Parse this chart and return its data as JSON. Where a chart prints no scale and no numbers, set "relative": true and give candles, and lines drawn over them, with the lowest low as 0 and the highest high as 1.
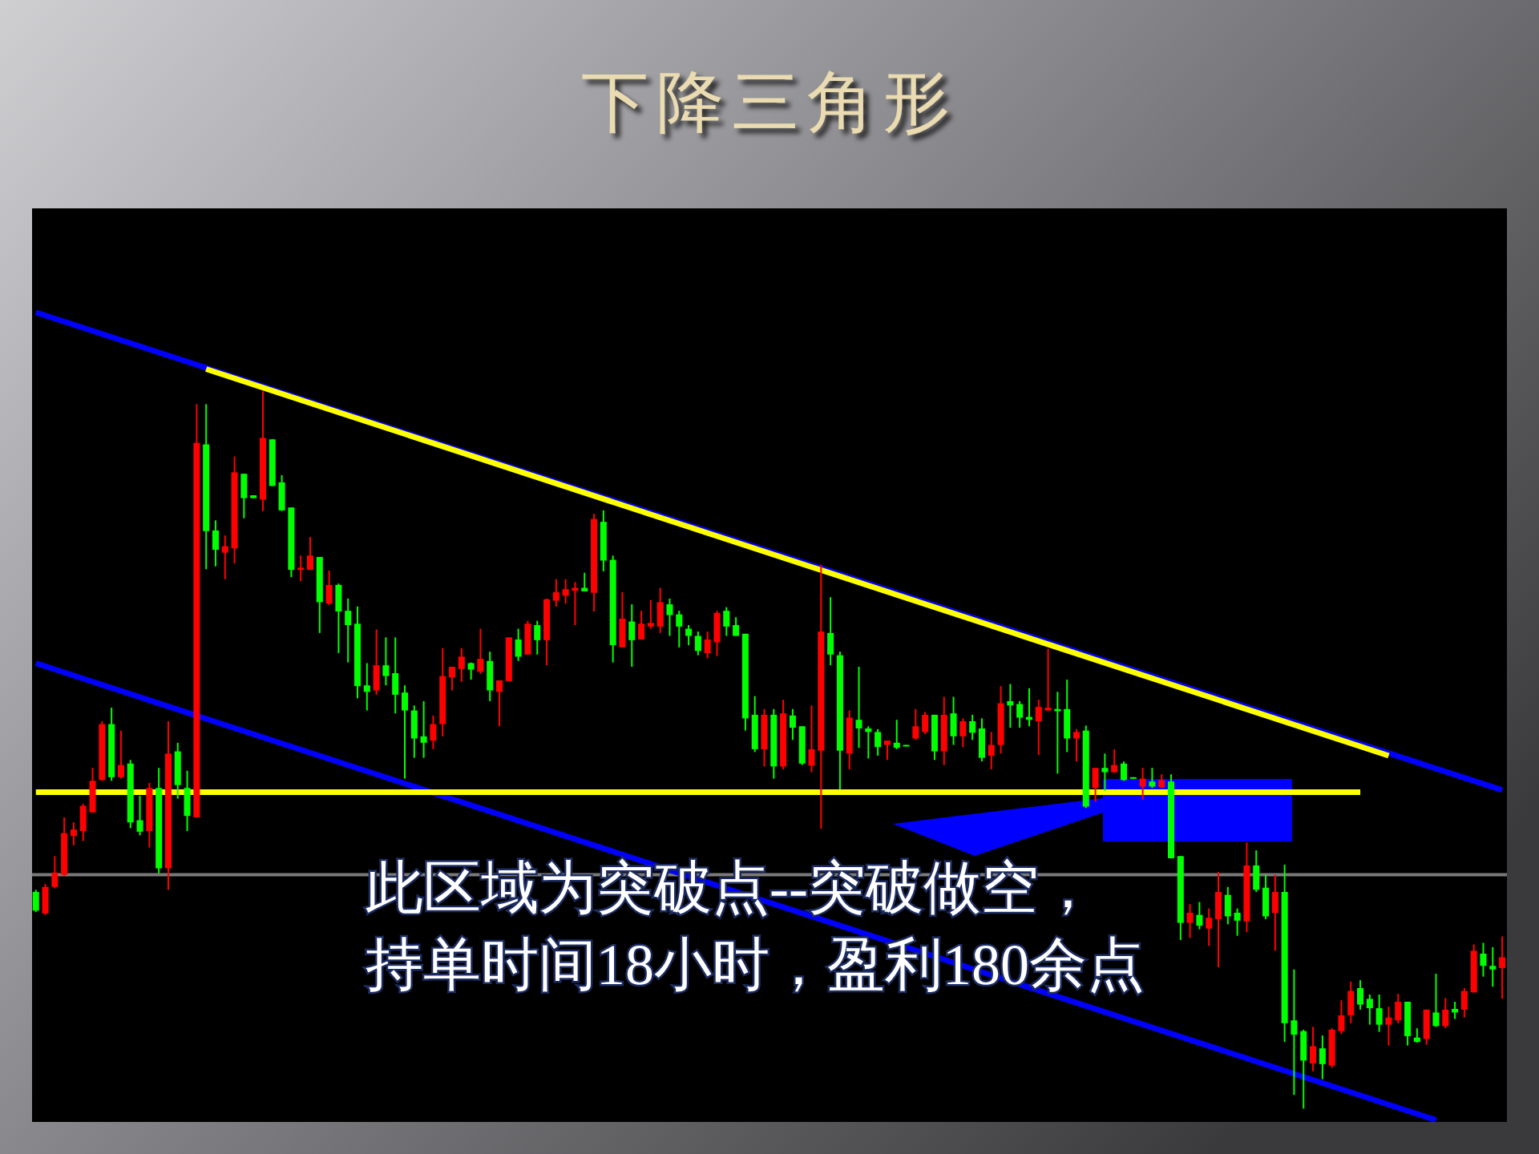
{
  "chart_data": {
    "type": "candlestick",
    "title": "下降三角形",
    "relative": true,
    "categories": [
      null,
      null,
      null,
      null,
      null,
      null,
      null,
      null,
      null,
      null,
      null,
      null,
      null,
      null,
      null,
      null,
      null,
      null,
      null,
      null,
      null,
      null,
      null,
      null,
      null,
      null,
      null,
      null,
      null,
      null,
      null,
      null,
      null,
      null,
      null,
      null,
      null,
      null,
      null,
      null,
      null,
      null,
      null,
      null,
      null,
      null,
      null,
      null,
      null,
      null,
      null,
      null,
      null,
      null,
      null,
      null,
      null,
      null,
      null,
      null,
      null,
      null,
      null,
      null,
      null,
      null,
      null,
      null,
      null,
      null,
      null,
      null,
      null,
      null,
      null,
      null,
      null,
      null,
      null,
      null,
      null,
      null,
      null,
      null,
      null,
      null,
      null,
      null,
      null,
      null,
      null,
      null,
      null,
      null,
      null,
      null,
      null,
      null,
      null,
      null,
      null,
      null,
      null,
      null,
      null,
      null,
      null,
      null,
      null,
      null,
      null,
      null,
      null,
      null,
      null,
      null,
      null,
      null,
      null,
      null,
      null,
      null,
      null,
      null,
      null,
      null,
      null,
      null,
      null,
      null,
      null,
      null,
      null,
      null,
      null,
      null,
      null,
      null,
      null,
      null,
      null,
      null,
      null,
      null,
      null,
      null,
      null,
      null,
      null,
      null,
      null,
      null,
      null,
      null,
      null,
      null
    ],
    "ohlc": [
      [
        0.302,
        0.305,
        0.274,
        0.276
      ],
      [
        0.272,
        0.313,
        0.27,
        0.309
      ],
      [
        0.309,
        0.352,
        0.307,
        0.329
      ],
      [
        0.326,
        0.406,
        0.324,
        0.384
      ],
      [
        0.38,
        0.399,
        0.367,
        0.389
      ],
      [
        0.387,
        0.425,
        0.373,
        0.422
      ],
      [
        0.413,
        0.475,
        0.413,
        0.457
      ],
      [
        0.458,
        0.54,
        0.457,
        0.536
      ],
      [
        0.536,
        0.559,
        0.457,
        0.462
      ],
      [
        0.462,
        0.527,
        0.46,
        0.479
      ],
      [
        0.481,
        0.486,
        0.391,
        0.399
      ],
      [
        0.402,
        0.436,
        0.381,
        0.386
      ],
      [
        0.387,
        0.454,
        0.364,
        0.447
      ],
      [
        0.447,
        0.475,
        0.328,
        0.335
      ],
      [
        0.335,
        0.54,
        0.305,
        0.495
      ],
      [
        0.498,
        0.51,
        0.432,
        0.451
      ],
      [
        0.447,
        0.471,
        0.387,
        0.408
      ],
      [
        0.406,
        0.982,
        0.406,
        0.928
      ],
      [
        0.926,
        0.982,
        0.752,
        0.805
      ],
      [
        0.806,
        0.82,
        0.756,
        0.779
      ],
      [
        0.775,
        0.799,
        0.738,
        0.784
      ],
      [
        0.781,
        0.909,
        0.76,
        0.887
      ],
      [
        0.885,
        0.885,
        0.823,
        0.851
      ],
      [
        0.855,
        0.855,
        0.851,
        0.851
      ],
      [
        0.849,
        1.0,
        0.833,
        0.935
      ],
      [
        0.933,
        0.933,
        0.868,
        0.868
      ],
      [
        0.873,
        0.883,
        0.833,
        0.834
      ],
      [
        0.838,
        0.838,
        0.741,
        0.751
      ],
      [
        0.751,
        0.771,
        0.735,
        0.754
      ],
      [
        0.751,
        0.797,
        0.751,
        0.771
      ],
      [
        0.769,
        0.769,
        0.663,
        0.706
      ],
      [
        0.704,
        0.75,
        0.702,
        0.73
      ],
      [
        0.73,
        0.732,
        0.635,
        0.693
      ],
      [
        0.694,
        0.711,
        0.622,
        0.674
      ],
      [
        0.676,
        0.7,
        0.572,
        0.589
      ],
      [
        0.59,
        0.621,
        0.555,
        0.581
      ],
      [
        0.583,
        0.668,
        0.577,
        0.618
      ],
      [
        0.618,
        0.657,
        0.59,
        0.603
      ],
      [
        0.607,
        0.657,
        0.551,
        0.577
      ],
      [
        0.58,
        0.59,
        0.46,
        0.555
      ],
      [
        0.555,
        0.562,
        0.489,
        0.516
      ],
      [
        0.519,
        0.568,
        0.489,
        0.51
      ],
      [
        0.513,
        0.548,
        0.501,
        0.536
      ],
      [
        0.536,
        0.642,
        0.519,
        0.603
      ],
      [
        0.601,
        0.616,
        0.583,
        0.616
      ],
      [
        0.613,
        0.642,
        0.595,
        0.63
      ],
      [
        0.621,
        0.622,
        0.598,
        0.612
      ],
      [
        0.609,
        0.669,
        0.606,
        0.627
      ],
      [
        0.624,
        0.637,
        0.568,
        0.583
      ],
      [
        0.581,
        0.597,
        0.533,
        0.597
      ],
      [
        0.596,
        0.657,
        0.596,
        0.657
      ],
      [
        0.654,
        0.669,
        0.624,
        0.63
      ],
      [
        0.633,
        0.68,
        0.633,
        0.676
      ],
      [
        0.674,
        0.68,
        0.633,
        0.653
      ],
      [
        0.653,
        0.711,
        0.618,
        0.71
      ],
      [
        0.708,
        0.738,
        0.7,
        0.72
      ],
      [
        0.715,
        0.738,
        0.704,
        0.724
      ],
      [
        0.722,
        0.734,
        0.674,
        0.726
      ],
      [
        0.726,
        0.747,
        0.721,
        0.721
      ],
      [
        0.719,
        0.829,
        0.693,
        0.822
      ],
      [
        0.818,
        0.834,
        0.749,
        0.764
      ],
      [
        0.765,
        0.771,
        0.622,
        0.646
      ],
      [
        0.643,
        0.72,
        0.643,
        0.683
      ],
      [
        0.679,
        0.703,
        0.616,
        0.653
      ],
      [
        0.654,
        0.694,
        0.654,
        0.676
      ],
      [
        0.672,
        0.709,
        0.669,
        0.677
      ],
      [
        0.672,
        0.726,
        0.663,
        0.706
      ],
      [
        0.703,
        0.711,
        0.659,
        0.688
      ],
      [
        0.689,
        0.694,
        0.643,
        0.672
      ],
      [
        0.669,
        0.674,
        0.646,
        0.659
      ],
      [
        0.659,
        0.665,
        0.632,
        0.638
      ],
      [
        0.635,
        0.665,
        0.628,
        0.654
      ],
      [
        0.65,
        0.694,
        0.631,
        0.691
      ],
      [
        0.694,
        0.699,
        0.659,
        0.672
      ],
      [
        0.674,
        0.685,
        0.659,
        0.659
      ],
      [
        0.662,
        0.662,
        0.527,
        0.544
      ],
      [
        0.549,
        0.575,
        0.497,
        0.501
      ],
      [
        0.501,
        0.557,
        0.477,
        0.549
      ],
      [
        0.549,
        0.557,
        0.46,
        0.477
      ],
      [
        0.477,
        0.57,
        0.473,
        0.551
      ],
      [
        0.548,
        0.557,
        0.514,
        0.531
      ],
      [
        0.533,
        0.533,
        0.479,
        0.481
      ],
      [
        0.478,
        0.562,
        0.469,
        0.501
      ],
      [
        0.499,
        0.758,
        0.39,
        0.665
      ],
      [
        0.663,
        0.713,
        0.618,
        0.633
      ],
      [
        0.632,
        0.637,
        0.445,
        0.499
      ],
      [
        0.495,
        0.555,
        0.473,
        0.545
      ],
      [
        0.542,
        0.616,
        0.503,
        0.53
      ],
      [
        0.53,
        0.533,
        0.488,
        0.525
      ],
      [
        0.525,
        0.529,
        0.492,
        0.504
      ],
      [
        0.507,
        0.513,
        0.486,
        0.513
      ],
      [
        0.51,
        0.542,
        0.501,
        0.503
      ],
      [
        0.507,
        0.507,
        0.505,
        0.505
      ],
      [
        0.516,
        0.557,
        0.514,
        0.533
      ],
      [
        0.525,
        0.553,
        0.522,
        0.549
      ],
      [
        0.549,
        0.549,
        0.486,
        0.498
      ],
      [
        0.498,
        0.574,
        0.479,
        0.549
      ],
      [
        0.551,
        0.574,
        0.507,
        0.519
      ],
      [
        0.519,
        0.544,
        0.504,
        0.54
      ],
      [
        0.54,
        0.549,
        0.514,
        0.524
      ],
      [
        0.53,
        0.544,
        0.484,
        0.489
      ],
      [
        0.492,
        0.525,
        0.473,
        0.507
      ],
      [
        0.507,
        0.589,
        0.495,
        0.565
      ],
      [
        0.568,
        0.592,
        0.531,
        0.562
      ],
      [
        0.564,
        0.568,
        0.531,
        0.545
      ],
      [
        0.546,
        0.586,
        0.533,
        0.542
      ],
      [
        0.54,
        0.57,
        0.493,
        0.56
      ],
      [
        0.555,
        0.641,
        0.555,
        0.559
      ],
      [
        0.557,
        0.581,
        0.467,
        0.554
      ],
      [
        0.557,
        0.598,
        0.497,
        0.516
      ],
      [
        0.516,
        0.529,
        0.484,
        0.525
      ],
      [
        0.527,
        0.534,
        0.419,
        0.421
      ],
      [
        0.447,
        0.475,
        0.428,
        0.475
      ],
      [
        0.475,
        0.495,
        0.443,
        0.469
      ],
      [
        0.469,
        0.501,
        0.468,
        0.479
      ],
      [
        0.481,
        0.484,
        0.457,
        0.458
      ],
      [
        0.462,
        0.462,
        0.46,
        0.46
      ],
      [
        0.449,
        0.475,
        0.431,
        0.46
      ],
      [
        0.456,
        0.475,
        0.447,
        0.449
      ],
      [
        0.448,
        0.466,
        0.447,
        0.458
      ],
      [
        0.456,
        0.466,
        0.349,
        0.349
      ],
      [
        0.352,
        0.352,
        0.235,
        0.259
      ],
      [
        0.259,
        0.285,
        0.238,
        0.273
      ],
      [
        0.27,
        0.288,
        0.25,
        0.255
      ],
      [
        0.251,
        0.279,
        0.227,
        0.266
      ],
      [
        0.264,
        0.33,
        0.197,
        0.302
      ],
      [
        0.298,
        0.309,
        0.257,
        0.268
      ],
      [
        0.273,
        0.279,
        0.241,
        0.262
      ],
      [
        0.261,
        0.371,
        0.246,
        0.339
      ],
      [
        0.339,
        0.36,
        0.302,
        0.305
      ],
      [
        0.308,
        0.326,
        0.264,
        0.268
      ],
      [
        0.273,
        0.326,
        0.22,
        0.302
      ],
      [
        0.302,
        0.34,
        0.093,
        0.119
      ],
      [
        0.123,
        0.194,
        0.019,
        0.103
      ],
      [
        0.108,
        0.11,
        0.0,
        0.067
      ],
      [
        0.063,
        0.114,
        0.052,
        0.087
      ],
      [
        0.084,
        0.102,
        0.041,
        0.062
      ],
      [
        0.06,
        0.112,
        0.057,
        0.11
      ],
      [
        0.108,
        0.151,
        0.104,
        0.13
      ],
      [
        0.13,
        0.177,
        0.119,
        0.164
      ],
      [
        0.168,
        0.179,
        0.138,
        0.145
      ],
      [
        0.153,
        0.159,
        0.117,
        0.14
      ],
      [
        0.14,
        0.159,
        0.107,
        0.117
      ],
      [
        0.117,
        0.142,
        0.088,
        0.127
      ],
      [
        0.123,
        0.16,
        0.119,
        0.149
      ],
      [
        0.149,
        0.149,
        0.088,
        0.101
      ],
      [
        0.099,
        0.112,
        0.092,
        0.093
      ],
      [
        0.097,
        0.138,
        0.089,
        0.138
      ],
      [
        0.134,
        0.188,
        0.114,
        0.115
      ],
      [
        0.115,
        0.154,
        0.112,
        0.138
      ],
      [
        0.139,
        0.149,
        0.125,
        0.134
      ],
      [
        0.138,
        0.168,
        0.127,
        0.164
      ],
      [
        0.162,
        0.229,
        0.162,
        0.22
      ],
      [
        0.216,
        0.231,
        0.184,
        0.199
      ],
      [
        0.199,
        0.225,
        0.17,
        0.194
      ],
      [
        0.196,
        0.24,
        0.153,
        0.211
      ]
    ],
    "colors": [
      "#00ff00",
      "#ff0000",
      "#ff0000",
      "#ff0000",
      "#ff0000",
      "#ff0000",
      "#ff0000",
      "#ff0000",
      "#00ff00",
      "#ff0000",
      "#00ff00",
      "#00ff00",
      "#ff0000",
      "#00ff00",
      "#ff0000",
      "#00ff00",
      "#00ff00",
      "#ff0000",
      "#00ff00",
      "#00ff00",
      "#ff0000",
      "#ff0000",
      "#00ff00",
      "#00ff00",
      "#ff0000",
      "#00ff00",
      "#00ff00",
      "#00ff00",
      "#ff0000",
      "#ff0000",
      "#00ff00",
      "#ff0000",
      "#00ff00",
      "#00ff00",
      "#00ff00",
      "#00ff00",
      "#ff0000",
      "#00ff00",
      "#00ff00",
      "#00ff00",
      "#00ff00",
      "#00ff00",
      "#ff0000",
      "#ff0000",
      "#ff0000",
      "#ff0000",
      "#00ff00",
      "#ff0000",
      "#00ff00",
      "#ff0000",
      "#ff0000",
      "#00ff00",
      "#ff0000",
      "#00ff00",
      "#ff0000",
      "#ff0000",
      "#ff0000",
      "#ff0000",
      "#00ff00",
      "#ff0000",
      "#00ff00",
      "#00ff00",
      "#ff0000",
      "#00ff00",
      "#ff0000",
      "#ff0000",
      "#ff0000",
      "#00ff00",
      "#00ff00",
      "#00ff00",
      "#00ff00",
      "#ff0000",
      "#ff0000",
      "#00ff00",
      "#00ff00",
      "#00ff00",
      "#00ff00",
      "#ff0000",
      "#00ff00",
      "#ff0000",
      "#00ff00",
      "#00ff00",
      "#ff0000",
      "#ff0000",
      "#00ff00",
      "#00ff00",
      "#ff0000",
      "#00ff00",
      "#00ff00",
      "#00ff00",
      "#ff0000",
      "#00ff00",
      "#00ff00",
      "#ff0000",
      "#ff0000",
      "#00ff00",
      "#ff0000",
      "#00ff00",
      "#ff0000",
      "#00ff00",
      "#00ff00",
      "#ff0000",
      "#ff0000",
      "#00ff00",
      "#00ff00",
      "#00ff00",
      "#ff0000",
      "#ff0000",
      "#00ff00",
      "#00ff00",
      "#ff0000",
      "#00ff00",
      "#ff0000",
      "#00ff00",
      "#ff0000",
      "#00ff00",
      "#00ff00",
      "#ff0000",
      "#00ff00",
      "#ff0000",
      "#00ff00",
      "#00ff00",
      "#ff0000",
      "#00ff00",
      "#ff0000",
      "#ff0000",
      "#00ff00",
      "#00ff00",
      "#ff0000",
      "#00ff00",
      "#00ff00",
      "#ff0000",
      "#00ff00",
      "#00ff00",
      "#00ff00",
      "#ff0000",
      "#00ff00",
      "#ff0000",
      "#ff0000",
      "#ff0000",
      "#00ff00",
      "#00ff00",
      "#00ff00",
      "#ff0000",
      "#ff0000",
      "#00ff00",
      "#00ff00",
      "#ff0000",
      "#00ff00",
      "#ff0000",
      "#00ff00",
      "#ff0000",
      "#ff0000",
      "#00ff00",
      "#00ff00",
      "#ff0000"
    ],
    "series": [
      {
        "type": "line",
        "color": "#0000ff",
        "values": [
          1.11,
          null,
          null,
          null,
          null,
          null,
          null,
          null,
          null,
          null,
          null,
          null,
          null,
          null,
          null,
          null,
          null,
          null,
          null,
          null,
          null,
          null,
          null,
          null,
          null,
          null,
          null,
          null,
          null,
          null,
          null,
          null,
          null,
          null,
          null,
          null,
          null,
          null,
          null,
          null,
          null,
          null,
          null,
          null,
          null,
          null,
          null,
          null,
          null,
          null,
          null,
          null,
          null,
          null,
          null,
          null,
          null,
          null,
          null,
          null,
          null,
          null,
          null,
          null,
          null,
          null,
          null,
          null,
          null,
          null,
          null,
          null,
          null,
          null,
          null,
          null,
          null,
          null,
          null,
          null,
          null,
          null,
          null,
          null,
          null,
          null,
          null,
          null,
          null,
          null,
          null,
          null,
          null,
          null,
          null,
          null,
          null,
          null,
          null,
          null,
          null,
          null,
          null,
          null,
          null,
          null,
          null,
          null,
          null,
          null,
          null,
          null,
          null,
          null,
          null,
          null,
          null,
          null,
          null,
          null,
          null,
          null,
          null,
          null,
          null,
          null,
          null,
          null,
          null,
          null,
          null,
          null,
          null,
          null,
          null,
          null,
          null,
          null,
          null,
          null,
          null,
          null,
          null,
          null,
          null,
          null,
          null,
          null,
          null,
          null,
          null,
          null,
          null,
          null,
          null,
          0.444
        ]
      },
      {
        "type": "line",
        "color": "#0000ff",
        "values": [
          0.621,
          null,
          null,
          null,
          null,
          null,
          null,
          null,
          null,
          null,
          null,
          null,
          null,
          null,
          null,
          null,
          null,
          null,
          null,
          null,
          null,
          null,
          null,
          null,
          null,
          null,
          null,
          null,
          null,
          null,
          null,
          null,
          null,
          null,
          null,
          null,
          null,
          null,
          null,
          null,
          null,
          null,
          null,
          null,
          null,
          null,
          null,
          null,
          null,
          null,
          null,
          null,
          null,
          null,
          null,
          null,
          null,
          null,
          null,
          null,
          null,
          null,
          null,
          null,
          null,
          null,
          null,
          null,
          null,
          null,
          null,
          null,
          null,
          null,
          null,
          null,
          null,
          null,
          null,
          null,
          null,
          null,
          null,
          null,
          null,
          null,
          null,
          null,
          null,
          null,
          null,
          null,
          null,
          null,
          null,
          null,
          null,
          null,
          null,
          null,
          null,
          null,
          null,
          null,
          null,
          null,
          null,
          null,
          null,
          null,
          null,
          null,
          null,
          null,
          null,
          null,
          null,
          null,
          null,
          null,
          null,
          null,
          null,
          null,
          null,
          null,
          null,
          null,
          null,
          null,
          null,
          null,
          null,
          null,
          null,
          null,
          null,
          null,
          null,
          null,
          null,
          null,
          null,
          null,
          null,
          null,
          null,
          null,
          -0.016,
          null,
          null,
          null,
          null,
          null,
          null,
          null
        ]
      },
      {
        "type": "line",
        "color": "#ffff00",
        "values": [
          null,
          null,
          null,
          null,
          null,
          null,
          null,
          null,
          null,
          null,
          null,
          null,
          null,
          null,
          null,
          null,
          null,
          null,
          1.031,
          null,
          null,
          null,
          null,
          null,
          null,
          null,
          null,
          null,
          null,
          null,
          null,
          null,
          null,
          null,
          null,
          null,
          null,
          null,
          null,
          null,
          null,
          null,
          null,
          null,
          null,
          null,
          null,
          null,
          null,
          null,
          null,
          null,
          null,
          null,
          null,
          null,
          null,
          null,
          null,
          null,
          null,
          null,
          null,
          null,
          null,
          null,
          null,
          null,
          null,
          null,
          null,
          null,
          null,
          null,
          null,
          null,
          null,
          null,
          null,
          null,
          null,
          null,
          null,
          null,
          null,
          null,
          null,
          null,
          null,
          null,
          null,
          null,
          null,
          null,
          null,
          null,
          null,
          null,
          null,
          null,
          null,
          null,
          null,
          null,
          null,
          null,
          null,
          null,
          null,
          null,
          null,
          null,
          null,
          null,
          null,
          null,
          null,
          null,
          null,
          null,
          null,
          null,
          null,
          null,
          null,
          null,
          null,
          null,
          null,
          null,
          null,
          null,
          null,
          null,
          null,
          null,
          null,
          null,
          null,
          null,
          null,
          null,
          null,
          0.492,
          null,
          null,
          null,
          null,
          null,
          null,
          null,
          null,
          null,
          null,
          null,
          null
        ]
      },
      {
        "type": "line",
        "color": "#ffff00",
        "values": [
          0.441,
          null,
          null,
          null,
          null,
          null,
          null,
          null,
          null,
          null,
          null,
          null,
          null,
          null,
          null,
          null,
          null,
          null,
          null,
          null,
          null,
          null,
          null,
          null,
          null,
          null,
          null,
          null,
          null,
          null,
          null,
          null,
          null,
          null,
          null,
          null,
          null,
          null,
          null,
          null,
          null,
          null,
          null,
          null,
          null,
          null,
          null,
          null,
          null,
          null,
          null,
          null,
          null,
          null,
          null,
          null,
          null,
          null,
          null,
          null,
          null,
          null,
          null,
          null,
          null,
          null,
          null,
          null,
          null,
          null,
          null,
          null,
          null,
          null,
          null,
          null,
          null,
          null,
          null,
          null,
          null,
          null,
          null,
          null,
          null,
          null,
          null,
          null,
          null,
          null,
          null,
          null,
          null,
          null,
          null,
          null,
          null,
          null,
          null,
          null,
          null,
          null,
          null,
          null,
          null,
          null,
          null,
          null,
          null,
          null,
          null,
          null,
          null,
          null,
          null,
          null,
          null,
          null,
          null,
          null,
          null,
          null,
          null,
          null,
          null,
          null,
          null,
          null,
          null,
          null,
          null,
          null,
          null,
          null,
          null,
          null,
          null,
          null,
          null,
          null,
          0.441,
          null,
          null,
          null,
          null,
          null,
          null,
          null,
          null,
          null,
          null,
          null,
          null,
          null,
          null,
          null
        ]
      }
    ],
    "ref_lines": [
      {
        "axis": "y",
        "value": 0.326,
        "color": "#7a7a7a"
      }
    ],
    "annotations": [
      "此区域为突破点--突破做空，",
      "持单时间18小时，盈利180余点"
    ]
  }
}
